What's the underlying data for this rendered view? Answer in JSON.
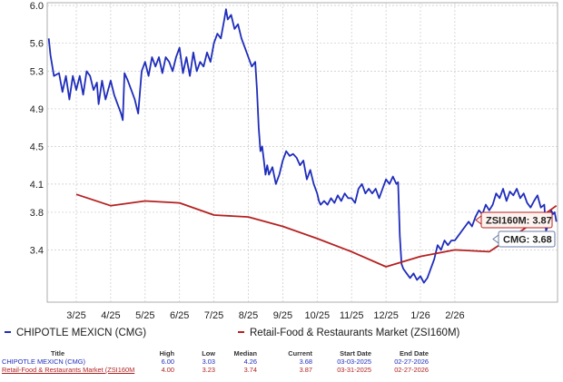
{
  "chart_data": {
    "type": "line",
    "ylim": [
      3.0,
      6.0
    ],
    "y_ticks": [
      "6.0",
      "5.6",
      "5.3",
      "4.9",
      "4.5",
      "4.1",
      "3.8",
      "3.4"
    ],
    "x_ticks": [
      "3/25",
      "4/25",
      "5/25",
      "6/25",
      "7/25",
      "8/25",
      "9/25",
      "10/25",
      "11/25",
      "12/25",
      "1/26",
      "2/26"
    ],
    "grid": true,
    "series": [
      {
        "name": "CHIPOTLE MEXICN (CMG)",
        "color": "#1f2dbb",
        "points": [
          [
            2.2,
            5.65
          ],
          [
            2.25,
            5.47
          ],
          [
            2.35,
            5.25
          ],
          [
            2.5,
            5.28
          ],
          [
            2.6,
            5.08
          ],
          [
            2.7,
            5.25
          ],
          [
            2.8,
            5.0
          ],
          [
            2.9,
            5.25
          ],
          [
            3.0,
            5.1
          ],
          [
            3.1,
            5.25
          ],
          [
            3.2,
            5.05
          ],
          [
            3.3,
            5.3
          ],
          [
            3.4,
            5.25
          ],
          [
            3.5,
            5.1
          ],
          [
            3.6,
            5.18
          ],
          [
            3.65,
            4.95
          ],
          [
            3.75,
            5.2
          ],
          [
            3.85,
            5.0
          ],
          [
            4.0,
            5.2
          ],
          [
            4.1,
            5.05
          ],
          [
            4.2,
            4.95
          ],
          [
            4.3,
            4.85
          ],
          [
            4.35,
            4.78
          ],
          [
            4.4,
            5.28
          ],
          [
            4.5,
            5.2
          ],
          [
            4.6,
            5.1
          ],
          [
            4.7,
            5.0
          ],
          [
            4.8,
            4.85
          ],
          [
            4.9,
            5.3
          ],
          [
            5.0,
            5.4
          ],
          [
            5.1,
            5.25
          ],
          [
            5.2,
            5.45
          ],
          [
            5.3,
            5.35
          ],
          [
            5.4,
            5.45
          ],
          [
            5.5,
            5.28
          ],
          [
            5.6,
            5.45
          ],
          [
            5.7,
            5.4
          ],
          [
            5.8,
            5.3
          ],
          [
            5.9,
            5.45
          ],
          [
            6.0,
            5.55
          ],
          [
            6.1,
            5.28
          ],
          [
            6.2,
            5.45
          ],
          [
            6.3,
            5.25
          ],
          [
            6.4,
            5.5
          ],
          [
            6.5,
            5.3
          ],
          [
            6.6,
            5.4
          ],
          [
            6.7,
            5.35
          ],
          [
            6.8,
            5.5
          ],
          [
            6.9,
            5.4
          ],
          [
            7.0,
            5.6
          ],
          [
            7.1,
            5.7
          ],
          [
            7.2,
            5.65
          ],
          [
            7.3,
            5.85
          ],
          [
            7.35,
            5.96
          ],
          [
            7.4,
            5.85
          ],
          [
            7.5,
            5.9
          ],
          [
            7.6,
            5.75
          ],
          [
            7.7,
            5.8
          ],
          [
            7.8,
            5.65
          ],
          [
            7.9,
            5.55
          ],
          [
            8.0,
            5.45
          ],
          [
            8.1,
            5.35
          ],
          [
            8.2,
            5.4
          ],
          [
            8.25,
            5.1
          ],
          [
            8.3,
            4.7
          ],
          [
            8.35,
            4.45
          ],
          [
            8.4,
            4.5
          ],
          [
            8.45,
            4.35
          ],
          [
            8.5,
            4.2
          ],
          [
            8.55,
            4.3
          ],
          [
            8.6,
            4.2
          ],
          [
            8.7,
            4.28
          ],
          [
            8.8,
            4.1
          ],
          [
            8.9,
            4.2
          ],
          [
            9.0,
            4.35
          ],
          [
            9.1,
            4.45
          ],
          [
            9.2,
            4.4
          ],
          [
            9.3,
            4.42
          ],
          [
            9.4,
            4.38
          ],
          [
            9.5,
            4.3
          ],
          [
            9.6,
            4.35
          ],
          [
            9.7,
            4.15
          ],
          [
            9.8,
            4.25
          ],
          [
            9.9,
            4.1
          ],
          [
            10.0,
            4.0
          ],
          [
            10.05,
            3.92
          ],
          [
            10.1,
            3.88
          ],
          [
            10.2,
            3.92
          ],
          [
            10.3,
            3.88
          ],
          [
            10.4,
            3.95
          ],
          [
            10.5,
            3.9
          ],
          [
            10.6,
            3.98
          ],
          [
            10.7,
            3.92
          ],
          [
            10.8,
            4.0
          ],
          [
            10.9,
            3.95
          ],
          [
            11.0,
            3.95
          ],
          [
            11.1,
            3.9
          ],
          [
            11.2,
            4.05
          ],
          [
            11.3,
            4.1
          ],
          [
            11.4,
            4.0
          ],
          [
            11.5,
            4.05
          ],
          [
            11.6,
            4.0
          ],
          [
            11.7,
            4.05
          ],
          [
            11.8,
            3.95
          ],
          [
            11.9,
            4.05
          ],
          [
            12.0,
            4.15
          ],
          [
            12.1,
            4.1
          ],
          [
            12.2,
            4.18
          ],
          [
            12.3,
            4.1
          ],
          [
            12.35,
            4.12
          ],
          [
            12.4,
            3.55
          ],
          [
            12.45,
            3.25
          ],
          [
            12.5,
            3.2
          ],
          [
            12.6,
            3.15
          ],
          [
            12.7,
            3.1
          ],
          [
            12.8,
            3.15
          ],
          [
            12.9,
            3.08
          ],
          [
            13.0,
            3.12
          ],
          [
            13.1,
            3.05
          ],
          [
            13.2,
            3.1
          ],
          [
            13.3,
            3.2
          ],
          [
            13.4,
            3.3
          ],
          [
            13.5,
            3.45
          ],
          [
            13.6,
            3.4
          ],
          [
            13.7,
            3.5
          ],
          [
            13.8,
            3.45
          ],
          [
            13.9,
            3.5
          ],
          [
            14.0,
            3.5
          ],
          [
            14.1,
            3.55
          ],
          [
            14.2,
            3.6
          ],
          [
            14.3,
            3.65
          ],
          [
            14.4,
            3.7
          ],
          [
            14.5,
            3.65
          ],
          [
            14.6,
            3.75
          ],
          [
            14.7,
            3.82
          ],
          [
            14.8,
            3.78
          ],
          [
            14.9,
            3.88
          ],
          [
            15.0,
            3.82
          ],
          [
            15.1,
            3.88
          ],
          [
            15.2,
            4.0
          ],
          [
            15.3,
            3.95
          ],
          [
            15.4,
            4.05
          ],
          [
            15.5,
            3.92
          ],
          [
            15.6,
            4.02
          ],
          [
            15.7,
            3.98
          ],
          [
            15.8,
            4.05
          ],
          [
            15.9,
            3.95
          ],
          [
            16.0,
            4.0
          ],
          [
            16.1,
            3.9
          ],
          [
            16.2,
            3.85
          ],
          [
            16.3,
            3.92
          ],
          [
            16.4,
            3.98
          ],
          [
            16.5,
            3.85
          ],
          [
            16.6,
            3.88
          ],
          [
            16.65,
            3.6
          ],
          [
            16.7,
            3.65
          ],
          [
            16.75,
            3.75
          ],
          [
            16.8,
            3.82
          ],
          [
            16.85,
            3.78
          ],
          [
            16.9,
            3.8
          ],
          [
            16.95,
            3.7
          ]
        ]
      },
      {
        "name": "Retail-Food & Restaurants Market (ZSI160M)",
        "color": "#b52121",
        "points": [
          [
            3.0,
            3.99
          ],
          [
            4.0,
            3.87
          ],
          [
            5.0,
            3.92
          ],
          [
            6.0,
            3.9
          ],
          [
            7.0,
            3.77
          ],
          [
            8.0,
            3.75
          ],
          [
            9.0,
            3.65
          ],
          [
            10.0,
            3.52
          ],
          [
            11.0,
            3.38
          ],
          [
            12.0,
            3.22
          ],
          [
            13.0,
            3.33
          ],
          [
            14.0,
            3.4
          ],
          [
            15.0,
            3.38
          ],
          [
            16.0,
            3.62
          ],
          [
            16.95,
            3.87
          ]
        ]
      }
    ],
    "end_labels": [
      {
        "text": "ZSI160M: 3.87",
        "series": 1
      },
      {
        "text": "CMG: 3.68",
        "series": 0
      }
    ]
  },
  "legend": [
    {
      "label": "CHIPOTLE MEXICN (CMG)",
      "color": "#1f2dbb"
    },
    {
      "label": "Retail-Food & Restaurants Market (ZSI160M)",
      "color": "#b52121"
    }
  ],
  "summary": {
    "headers": {
      "title": "Title",
      "high": "High",
      "low": "Low",
      "median": "Median",
      "current": "Current",
      "start": "Start Date",
      "end": "End Date"
    },
    "rows": [
      {
        "title": "CHIPOTLE MEXICN (CMG)",
        "high": "6.00",
        "low": "3.03",
        "median": "4.26",
        "current": "3.68",
        "start": "03-03-2025",
        "end": "02-27-2026"
      },
      {
        "title": "Retail-Food & Restaurants Market (ZSI160M",
        "high": "4.00",
        "low": "3.23",
        "median": "3.74",
        "current": "3.87",
        "start": "03-31-2025",
        "end": "02-27-2026"
      }
    ]
  }
}
